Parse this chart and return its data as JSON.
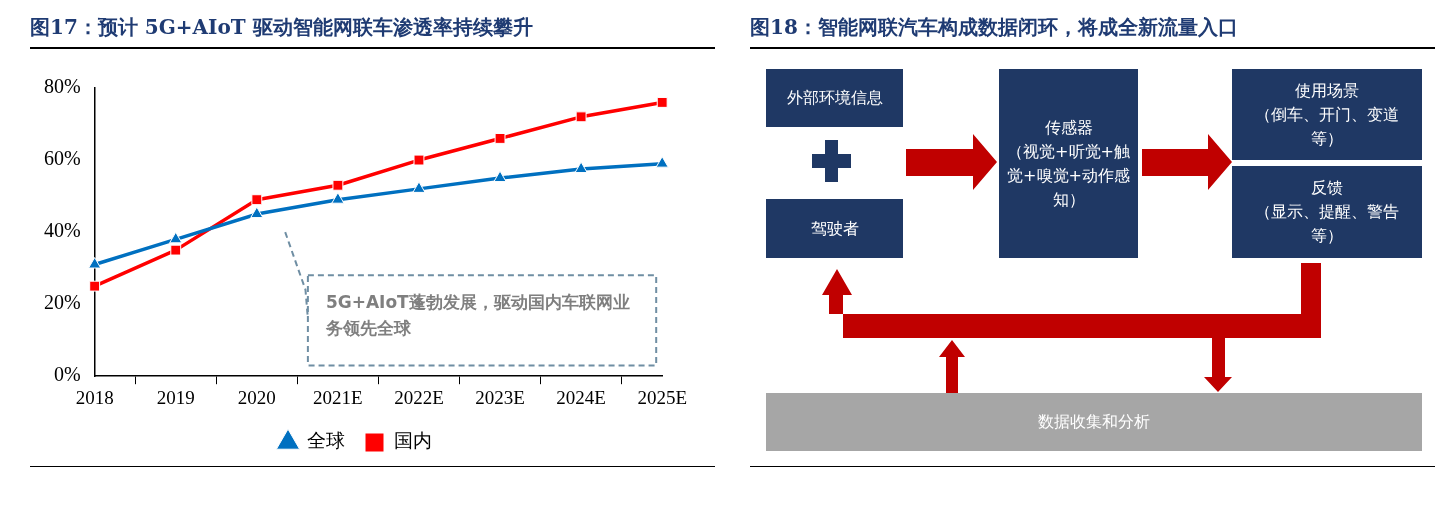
{
  "chart_data": [
    {
      "type": "line",
      "title": "图17：预计 5G+AIoT 驱动智能网联车渗透率持续攀升",
      "categories": [
        "2018",
        "2019",
        "2020",
        "2021E",
        "2022E",
        "2023E",
        "2024E",
        "2025E"
      ],
      "series": [
        {
          "name": "全球",
          "color": "#0070c0",
          "marker": "triangle",
          "values": [
            31,
            38,
            45,
            49,
            52,
            55,
            57.5,
            59
          ]
        },
        {
          "name": "国内",
          "color": "#ff0000",
          "marker": "square",
          "values": [
            25,
            35,
            49,
            53,
            60,
            66,
            72,
            76
          ]
        }
      ],
      "ylim": [
        0,
        80
      ],
      "yticks": [
        {
          "value": 0,
          "label": "0%"
        },
        {
          "value": 20,
          "label": "20%"
        },
        {
          "value": 40,
          "label": "40%"
        },
        {
          "value": 60,
          "label": "60%"
        },
        {
          "value": 80,
          "label": "80%"
        }
      ],
      "grid": false,
      "legend": "bottom",
      "line_style": "solid",
      "annotations": [
        "5G+AIoT蓬勃发展，驱动国内车联网业务领先全球"
      ]
    },
    {
      "type": "other",
      "title": "图18：智能网联汽车构成数据闭环，将成全新流量入口",
      "annotations": [
        "外部环境信息",
        "驾驶者",
        "传感器",
        "（视觉+听觉+触觉+嗅觉+动作感知）",
        "使用场景",
        "（倒车、开门、变道等）",
        "反馈",
        "（显示、提醒、警告等）",
        "数据收集和分析"
      ]
    }
  ]
}
